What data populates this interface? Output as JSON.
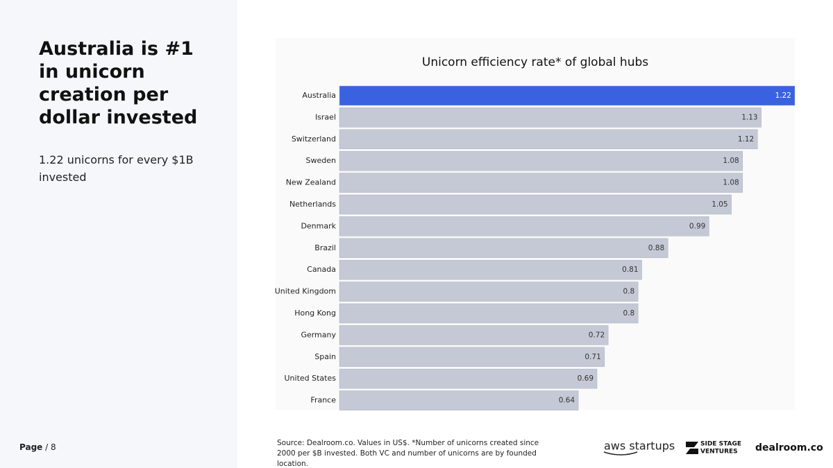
{
  "slide": {
    "title": "Australia is #1 in unicorn creation per dollar invested",
    "subtitle": "1.22 unicorns for every $1B invested",
    "page_label": "Page",
    "page_number": "/ 8",
    "source": "Source:  Dealroom.co. Values in US$. *Number of unicorns created since 2000 per $B invested. Both VC and number of unicorns are by founded location.",
    "logos": {
      "aws": "aws startups",
      "side_stage_1": "SIDE STAGE",
      "side_stage_2": "VENTURES",
      "dealroom": "dealroom.co"
    }
  },
  "chart_data": {
    "type": "bar",
    "orientation": "horizontal",
    "title": "Unicorn efficiency rate* of global hubs",
    "categories": [
      "Australia",
      "Israel",
      "Switzerland",
      "Sweden",
      "New Zealand",
      "Netherlands",
      "Denmark",
      "Brazil",
      "Canada",
      "United Kingdom",
      "Hong Kong",
      "Germany",
      "Spain",
      "United States",
      "France"
    ],
    "values": [
      1.22,
      1.13,
      1.12,
      1.08,
      1.08,
      1.05,
      0.99,
      0.88,
      0.81,
      0.8,
      0.8,
      0.72,
      0.71,
      0.69,
      0.64
    ],
    "colors": [
      "#3a62e0",
      "#c5c9d6",
      "#c5c9d6",
      "#c5c9d6",
      "#c5c9d6",
      "#c5c9d6",
      "#c5c9d6",
      "#c5c9d6",
      "#c5c9d6",
      "#c5c9d6",
      "#c5c9d6",
      "#c5c9d6",
      "#c5c9d6",
      "#c5c9d6",
      "#c5c9d6"
    ],
    "xlim": [
      0,
      1.22
    ]
  }
}
